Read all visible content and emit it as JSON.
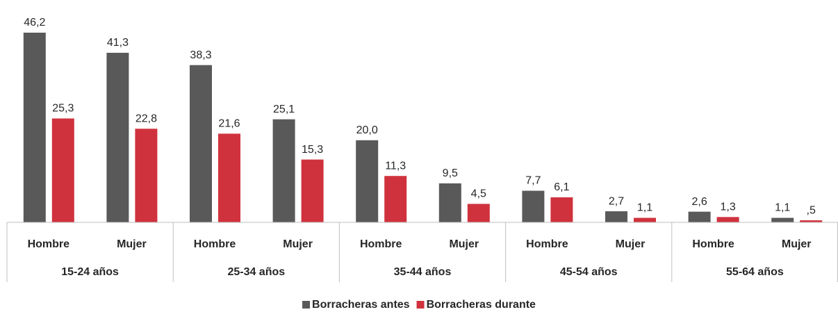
{
  "chart_data": {
    "type": "bar",
    "categories": [
      "Hombre",
      "Mujer",
      "Hombre",
      "Mujer",
      "Hombre",
      "Mujer",
      "Hombre",
      "Mujer",
      "Hombre",
      "Mujer"
    ],
    "groups": [
      "15-24 años",
      "25-34 años",
      "35-44 años",
      "45-54 años",
      "55-64 años"
    ],
    "series": [
      {
        "name": "Borracheras antes",
        "color": "#595959",
        "values": [
          46.2,
          41.3,
          38.3,
          25.1,
          20.0,
          9.5,
          7.7,
          2.7,
          2.6,
          1.1
        ],
        "value_labels": [
          "46,2",
          "41,3",
          "38,3",
          "25,1",
          "20,0",
          "9,5",
          "7,7",
          "2,7",
          "2,6",
          "1,1"
        ]
      },
      {
        "name": "Borracheras durante",
        "color": "#d0323d",
        "values": [
          25.3,
          22.8,
          21.6,
          15.3,
          11.3,
          4.5,
          6.1,
          1.1,
          1.3,
          0.5
        ],
        "value_labels": [
          "25,3",
          "22,8",
          "21,6",
          "15,3",
          "11,3",
          "4,5",
          "6,1",
          "1,1",
          "1,3",
          ",5"
        ]
      }
    ],
    "legend": "bottom"
  }
}
